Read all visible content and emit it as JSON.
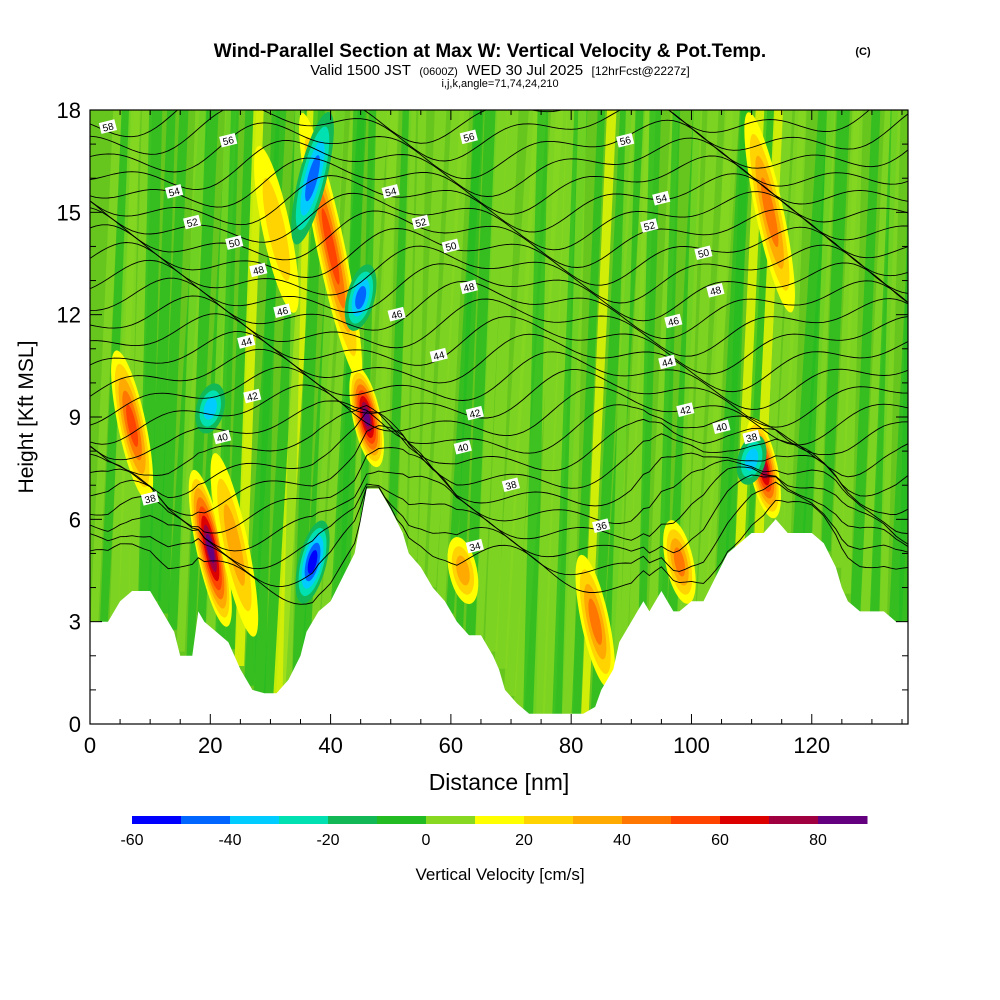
{
  "header": {
    "title": "Wind-Parallel Section at Max W: Vertical Velocity & Pot.Temp.",
    "copyright": "(C)",
    "valid_prefix": "Valid 1500 JST",
    "valid_utc": "(0600Z)",
    "valid_date": "WED 30 Jul 2025",
    "forecast": "[12hrFcst@2227z]",
    "indices": "i,j,k,angle=71,74,24,210"
  },
  "chart_data": {
    "type": "heatmap",
    "xlabel": "Distance [nm]",
    "ylabel": "Height [Kft MSL]",
    "xlim": [
      0,
      136
    ],
    "ylim": [
      0,
      18
    ],
    "x_ticks": [
      0,
      20,
      40,
      60,
      80,
      100,
      120
    ],
    "x_tick_labels": [
      "0",
      "20",
      "40",
      "60",
      "80",
      "100",
      "120"
    ],
    "y_ticks": [
      0,
      3,
      6,
      9,
      12,
      15,
      18
    ],
    "y_tick_labels": [
      "0",
      "3",
      "6",
      "9",
      "12",
      "15",
      "18"
    ],
    "terrain_kft": [
      [
        0,
        3.0
      ],
      [
        3,
        3.0
      ],
      [
        5,
        3.6
      ],
      [
        7,
        3.9
      ],
      [
        10,
        3.9
      ],
      [
        12,
        3.3
      ],
      [
        14,
        2.7
      ],
      [
        15,
        2.0
      ],
      [
        17,
        2.0
      ],
      [
        18,
        3.3
      ],
      [
        19,
        3.0
      ],
      [
        21,
        2.7
      ],
      [
        23,
        2.4
      ],
      [
        24,
        2.0
      ],
      [
        25,
        1.6
      ],
      [
        27,
        1.0
      ],
      [
        29,
        0.9
      ],
      [
        31,
        0.9
      ],
      [
        33,
        1.3
      ],
      [
        35,
        2.0
      ],
      [
        36,
        2.7
      ],
      [
        38,
        3.3
      ],
      [
        40,
        3.6
      ],
      [
        42,
        4.3
      ],
      [
        44,
        5.0
      ],
      [
        46,
        6.9
      ],
      [
        48,
        6.9
      ],
      [
        50,
        6.3
      ],
      [
        52,
        5.6
      ],
      [
        53,
        5.0
      ],
      [
        55,
        4.6
      ],
      [
        57,
        4.0
      ],
      [
        59,
        3.6
      ],
      [
        61,
        3.0
      ],
      [
        63,
        2.6
      ],
      [
        65,
        2.6
      ],
      [
        67,
        2.0
      ],
      [
        68,
        1.6
      ],
      [
        69,
        1.0
      ],
      [
        71,
        0.6
      ],
      [
        73,
        0.3
      ],
      [
        75,
        0.3
      ],
      [
        78,
        0.3
      ],
      [
        80,
        0.3
      ],
      [
        82,
        0.3
      ],
      [
        84,
        0.5
      ],
      [
        85,
        1.0
      ],
      [
        87,
        1.6
      ],
      [
        88,
        2.4
      ],
      [
        90,
        3.0
      ],
      [
        92,
        3.6
      ],
      [
        93,
        3.3
      ],
      [
        95,
        3.9
      ],
      [
        96,
        3.6
      ],
      [
        97,
        3.3
      ],
      [
        98,
        3.3
      ],
      [
        100,
        3.6
      ],
      [
        102,
        3.6
      ],
      [
        104,
        4.3
      ],
      [
        106,
        5.0
      ],
      [
        108,
        5.3
      ],
      [
        110,
        5.6
      ],
      [
        112,
        5.6
      ],
      [
        114,
        6.0
      ],
      [
        116,
        5.6
      ],
      [
        118,
        5.6
      ],
      [
        120,
        5.6
      ],
      [
        122,
        5.3
      ],
      [
        124,
        4.6
      ],
      [
        125,
        4.0
      ],
      [
        126,
        3.6
      ],
      [
        128,
        3.3
      ],
      [
        130,
        3.3
      ],
      [
        132,
        3.3
      ],
      [
        134,
        3.0
      ],
      [
        136,
        3.0
      ]
    ],
    "updrafts": [
      {
        "x": 7,
        "y_from": 6.5,
        "y_to": 11,
        "w": 55
      },
      {
        "x": 20,
        "y_from": 2.8,
        "y_to": 7.5,
        "w": 85
      },
      {
        "x": 24,
        "y_from": 2.5,
        "y_to": 8,
        "w": 35
      },
      {
        "x": 31,
        "y_from": 12,
        "y_to": 17,
        "w": 25
      },
      {
        "x": 40,
        "y_from": 10,
        "y_to": 18,
        "w": 55
      },
      {
        "x": 46,
        "y_from": 7.5,
        "y_to": 10.5,
        "w": 85
      },
      {
        "x": 62,
        "y_from": 3.5,
        "y_to": 5.5,
        "w": 35
      },
      {
        "x": 84,
        "y_from": 1,
        "y_to": 5,
        "w": 40
      },
      {
        "x": 98,
        "y_from": 3.5,
        "y_to": 6,
        "w": 40
      },
      {
        "x": 112,
        "y_from": 6,
        "y_to": 9,
        "w": 70
      },
      {
        "x": 113,
        "y_from": 12,
        "y_to": 18,
        "w": 45
      }
    ],
    "downdrafts": [
      {
        "x": 37,
        "y_from": 3.5,
        "y_to": 6,
        "w": -50
      },
      {
        "x": 37,
        "y_from": 14,
        "y_to": 18,
        "w": -45
      },
      {
        "x": 45,
        "y_from": 11.5,
        "y_to": 13.5,
        "w": -45
      },
      {
        "x": 20,
        "y_from": 8.5,
        "y_to": 10,
        "w": -30
      },
      {
        "x": 110,
        "y_from": 7,
        "y_to": 8.5,
        "w": -30
      }
    ],
    "theta_labels": [
      {
        "v": "34",
        "x": 64,
        "y": 5.2
      },
      {
        "v": "36",
        "x": 85,
        "y": 5.8
      },
      {
        "v": "38",
        "x": 10,
        "y": 6.6
      },
      {
        "v": "38",
        "x": 70,
        "y": 7.0
      },
      {
        "v": "38",
        "x": 110,
        "y": 8.4
      },
      {
        "v": "40",
        "x": 22,
        "y": 8.4
      },
      {
        "v": "40",
        "x": 62,
        "y": 8.1
      },
      {
        "v": "40",
        "x": 105,
        "y": 8.7
      },
      {
        "v": "42",
        "x": 27,
        "y": 9.6
      },
      {
        "v": "42",
        "x": 64,
        "y": 9.1
      },
      {
        "v": "42",
        "x": 99,
        "y": 9.2
      },
      {
        "v": "44",
        "x": 26,
        "y": 11.2
      },
      {
        "v": "44",
        "x": 58,
        "y": 10.8
      },
      {
        "v": "44",
        "x": 96,
        "y": 10.6
      },
      {
        "v": "46",
        "x": 32,
        "y": 12.1
      },
      {
        "v": "46",
        "x": 51,
        "y": 12.0
      },
      {
        "v": "46",
        "x": 97,
        "y": 11.8
      },
      {
        "v": "48",
        "x": 28,
        "y": 13.3
      },
      {
        "v": "48",
        "x": 63,
        "y": 12.8
      },
      {
        "v": "48",
        "x": 104,
        "y": 12.7
      },
      {
        "v": "50",
        "x": 24,
        "y": 14.1
      },
      {
        "v": "50",
        "x": 60,
        "y": 14.0
      },
      {
        "v": "50",
        "x": 102,
        "y": 13.8
      },
      {
        "v": "52",
        "x": 17,
        "y": 14.7
      },
      {
        "v": "52",
        "x": 55,
        "y": 14.7
      },
      {
        "v": "52",
        "x": 93,
        "y": 14.6
      },
      {
        "v": "54",
        "x": 14,
        "y": 15.6
      },
      {
        "v": "54",
        "x": 50,
        "y": 15.6
      },
      {
        "v": "54",
        "x": 95,
        "y": 15.4
      },
      {
        "v": "56",
        "x": 23,
        "y": 17.1
      },
      {
        "v": "56",
        "x": 63,
        "y": 17.2
      },
      {
        "v": "56",
        "x": 89,
        "y": 17.1
      },
      {
        "v": "58",
        "x": 3,
        "y": 17.5
      }
    ],
    "colorbar": {
      "label": "Vertical Velocity [cm/s]",
      "levels": [
        -60,
        -50,
        -40,
        -30,
        -20,
        -10,
        0,
        10,
        20,
        30,
        40,
        50,
        60,
        70,
        80,
        90
      ],
      "colors": [
        "#0000ff",
        "#0066ff",
        "#00ccff",
        "#00e0b0",
        "#11b855",
        "#22bb22",
        "#88d822",
        "#ffff00",
        "#ffd400",
        "#ffaa00",
        "#ff7700",
        "#ff4400",
        "#dd0000",
        "#a00040",
        "#640080"
      ],
      "tick_values": [
        -60,
        -40,
        -20,
        0,
        20,
        40,
        60,
        80
      ],
      "tick_labels": [
        "-60",
        "-40",
        "-20",
        "0",
        "20",
        "40",
        "60",
        "80"
      ]
    }
  }
}
